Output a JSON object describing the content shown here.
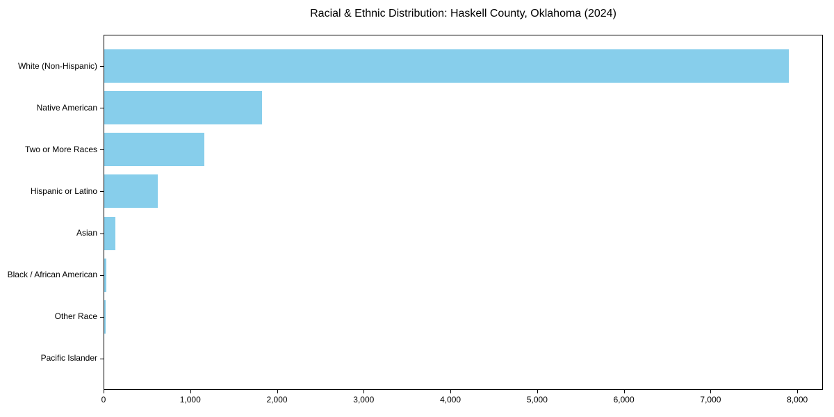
{
  "chart_data": {
    "type": "bar",
    "orientation": "horizontal",
    "title": "Racial & Ethnic Distribution: Haskell County, Oklahoma (2024)",
    "categories": [
      "White (Non-Hispanic)",
      "Native American",
      "Two or More Races",
      "Hispanic or Latino",
      "Asian",
      "Black / African American",
      "Other Race",
      "Pacific Islander"
    ],
    "values": [
      7900,
      1825,
      1165,
      625,
      135,
      30,
      25,
      3
    ],
    "xlim": [
      0,
      8295
    ],
    "xticks": [
      0,
      1000,
      2000,
      3000,
      4000,
      5000,
      6000,
      7000,
      8000
    ],
    "xtick_labels": [
      "0",
      "1,000",
      "2,000",
      "3,000",
      "4,000",
      "5,000",
      "6,000",
      "7,000",
      "8,000"
    ],
    "xlabel": "",
    "ylabel": "",
    "grid": false,
    "legend_position": "none",
    "bar_color": "#87CEEB",
    "axis_color": "#000000",
    "text_color": "#000000",
    "background_color": "#ffffff",
    "bar_height_fraction": 0.8
  }
}
